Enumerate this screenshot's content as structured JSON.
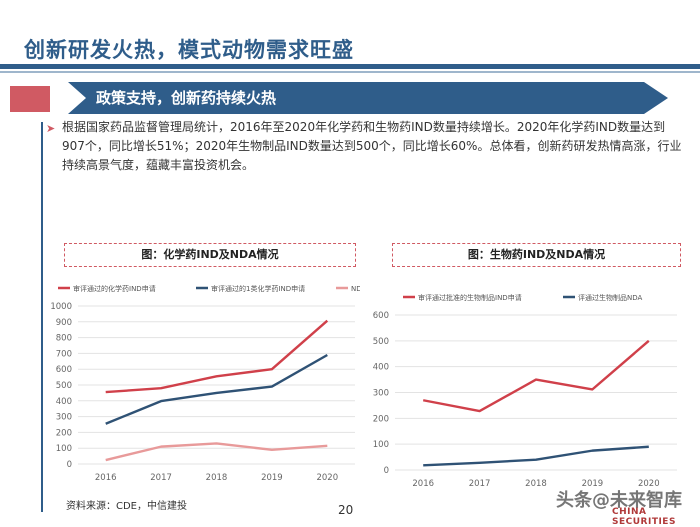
{
  "header": {
    "title": "创新研发火热，模式动物需求旺盛"
  },
  "section": {
    "ribbon": "政策支持，创新药持续火热"
  },
  "bullet": {
    "text": "根据国家药品监督管理局统计，2016年至2020年化学药和生物药IND数量持续增长。2020年化学药IND数量达到907个，同比增长51%；2020年生物制品IND数量达到500个，同比增长60%。总体看，创新药研发热情高涨，行业持续高景气度，蕴藏丰富投资机会。"
  },
  "footer": {
    "source": "资料来源：CDE，中信建投",
    "page": "20",
    "watermark": "头条@未来智库",
    "brand": "CHINA SECURITIES"
  },
  "colors": {
    "red": "#d0404a",
    "navy": "#2f5275",
    "pink": "#e89a9a",
    "accent": "#2f5d8a"
  },
  "chart_data": [
    {
      "type": "line",
      "title": "图：化学药IND及NDA情况",
      "categories": [
        "2016",
        "2017",
        "2018",
        "2019",
        "2020"
      ],
      "yticks": [
        "0",
        "100",
        "200",
        "300",
        "400",
        "500",
        "600",
        "700",
        "800",
        "900",
        "1000"
      ],
      "ylim": [
        0,
        1000
      ],
      "series": [
        {
          "name": "审评通过的化学药IND申请",
          "color": "#d0404a",
          "values": [
            455,
            480,
            555,
            600,
            907
          ]
        },
        {
          "name": "审评通过的1类化学药IND申请",
          "color": "#2f5275",
          "values": [
            255,
            398,
            450,
            490,
            690
          ]
        },
        {
          "name": "NDA",
          "color": "#e89a9a",
          "values": [
            25,
            110,
            130,
            90,
            115
          ]
        }
      ]
    },
    {
      "type": "line",
      "title": "图：生物药IND及NDA情况",
      "categories": [
        "2016",
        "2017",
        "2018",
        "2019",
        "2020"
      ],
      "yticks": [
        "0",
        "100",
        "200",
        "300",
        "400",
        "500",
        "600"
      ],
      "ylim": [
        0,
        600
      ],
      "series": [
        {
          "name": "审评通过批准的生物制品IND申请",
          "color": "#d0404a",
          "values": [
            270,
            228,
            350,
            312,
            500
          ]
        },
        {
          "name": "评通过生物制品NDA",
          "color": "#2f5275",
          "values": [
            18,
            28,
            40,
            75,
            90
          ]
        }
      ]
    }
  ]
}
